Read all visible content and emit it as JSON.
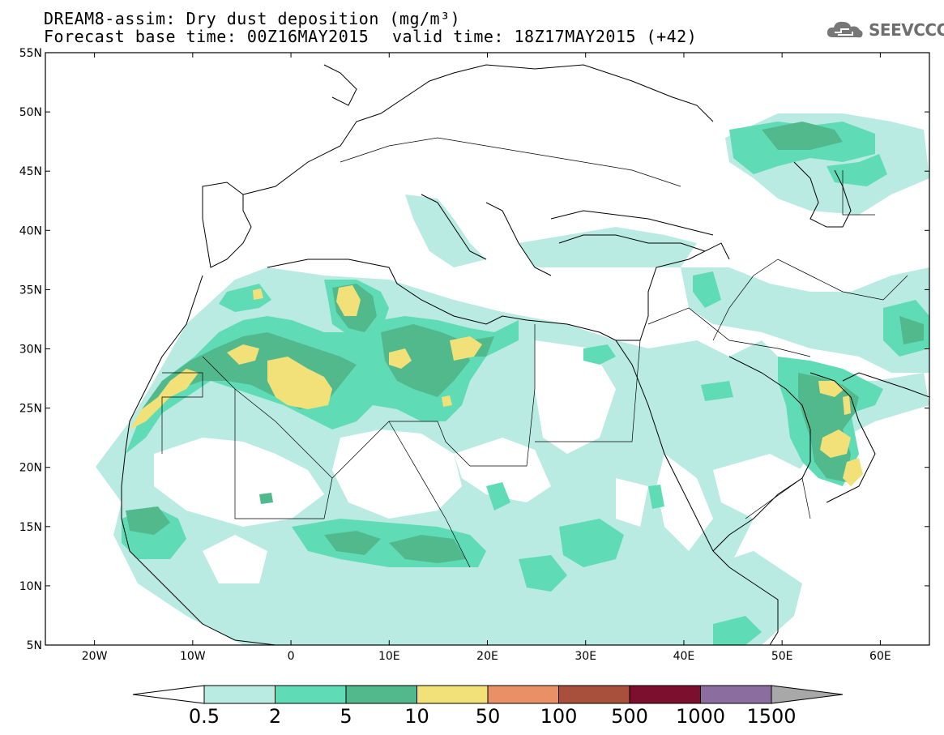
{
  "header": {
    "title_line1": "DREAM8-assim: Dry dust deposition (mg/m³)",
    "title_line2": "Forecast base time: 00Z16MAY2015",
    "valid_time": "valid time: 18Z17MAY2015 (+42)",
    "logo_text": "SEEVCCC",
    "logo_icon": "cloud-icon"
  },
  "map": {
    "projection": "lat-lon",
    "lon_range": [
      -25,
      65
    ],
    "lat_range": [
      5,
      55
    ],
    "lat_ticks": [
      "55N",
      "50N",
      "45N",
      "40N",
      "35N",
      "30N",
      "25N",
      "20N",
      "15N",
      "10N",
      "5N"
    ],
    "lon_ticks": [
      "20W",
      "10W",
      "0",
      "10E",
      "20E",
      "30E",
      "40E",
      "50E",
      "60E"
    ],
    "shading_colors": {
      "0.5-2": "#b9ebe3",
      "2-5": "#5fdcb6",
      "5-10": "#52b98d",
      "10-50": "#f2e178"
    }
  },
  "colorbar": {
    "levels": [
      "0.5",
      "2",
      "5",
      "10",
      "50",
      "100",
      "500",
      "1000",
      "1500"
    ],
    "colors": [
      "#b9ebe3",
      "#5fdcb6",
      "#52b98d",
      "#f2e178",
      "#ea9066",
      "#a9503d",
      "#7c0f2d",
      "#8b6e9f"
    ],
    "under_color": "#ffffff",
    "over_color": "#a8a8a8"
  },
  "chart_data": {
    "type": "heatmap",
    "title": "DREAM8-assim: Dry dust deposition (mg/m³)",
    "variable": "Dry dust deposition",
    "units": "mg/m³",
    "base_time": "00Z16MAY2015",
    "valid_time": "18Z17MAY2015",
    "lead_hours": 42,
    "x_range": [
      -25,
      65
    ],
    "y_range": [
      5,
      55
    ],
    "contour_levels": [
      0.5,
      2,
      5,
      10,
      50,
      100,
      500,
      1000,
      1500
    ],
    "regions": [
      {
        "lon": [
          -16,
          -5
        ],
        "lat": [
          22,
          31
        ],
        "class": "10-50"
      },
      {
        "lon": [
          -4,
          3
        ],
        "lat": [
          25,
          30
        ],
        "class": "10-50"
      },
      {
        "lon": [
          5,
          8
        ],
        "lat": [
          31,
          35
        ],
        "class": "10-50"
      },
      {
        "lon": [
          9,
          12
        ],
        "lat": [
          27,
          30
        ],
        "class": "10-50"
      },
      {
        "lon": [
          16,
          19
        ],
        "lat": [
          29,
          31
        ],
        "class": "10-50"
      },
      {
        "lon": [
          54,
          58
        ],
        "lat": [
          22,
          27
        ],
        "class": "10-50"
      },
      {
        "lon": [
          -10,
          20
        ],
        "lat": [
          25,
          33
        ],
        "class": "5-10"
      },
      {
        "lon": [
          -15,
          25
        ],
        "lat": [
          10,
          15
        ],
        "class": "2-5"
      },
      {
        "lon": [
          45,
          60
        ],
        "lat": [
          44,
          49
        ],
        "class": "2-5"
      },
      {
        "lon": [
          -22,
          65
        ],
        "lat": [
          5,
          45
        ],
        "class": "0.5-2"
      }
    ]
  }
}
